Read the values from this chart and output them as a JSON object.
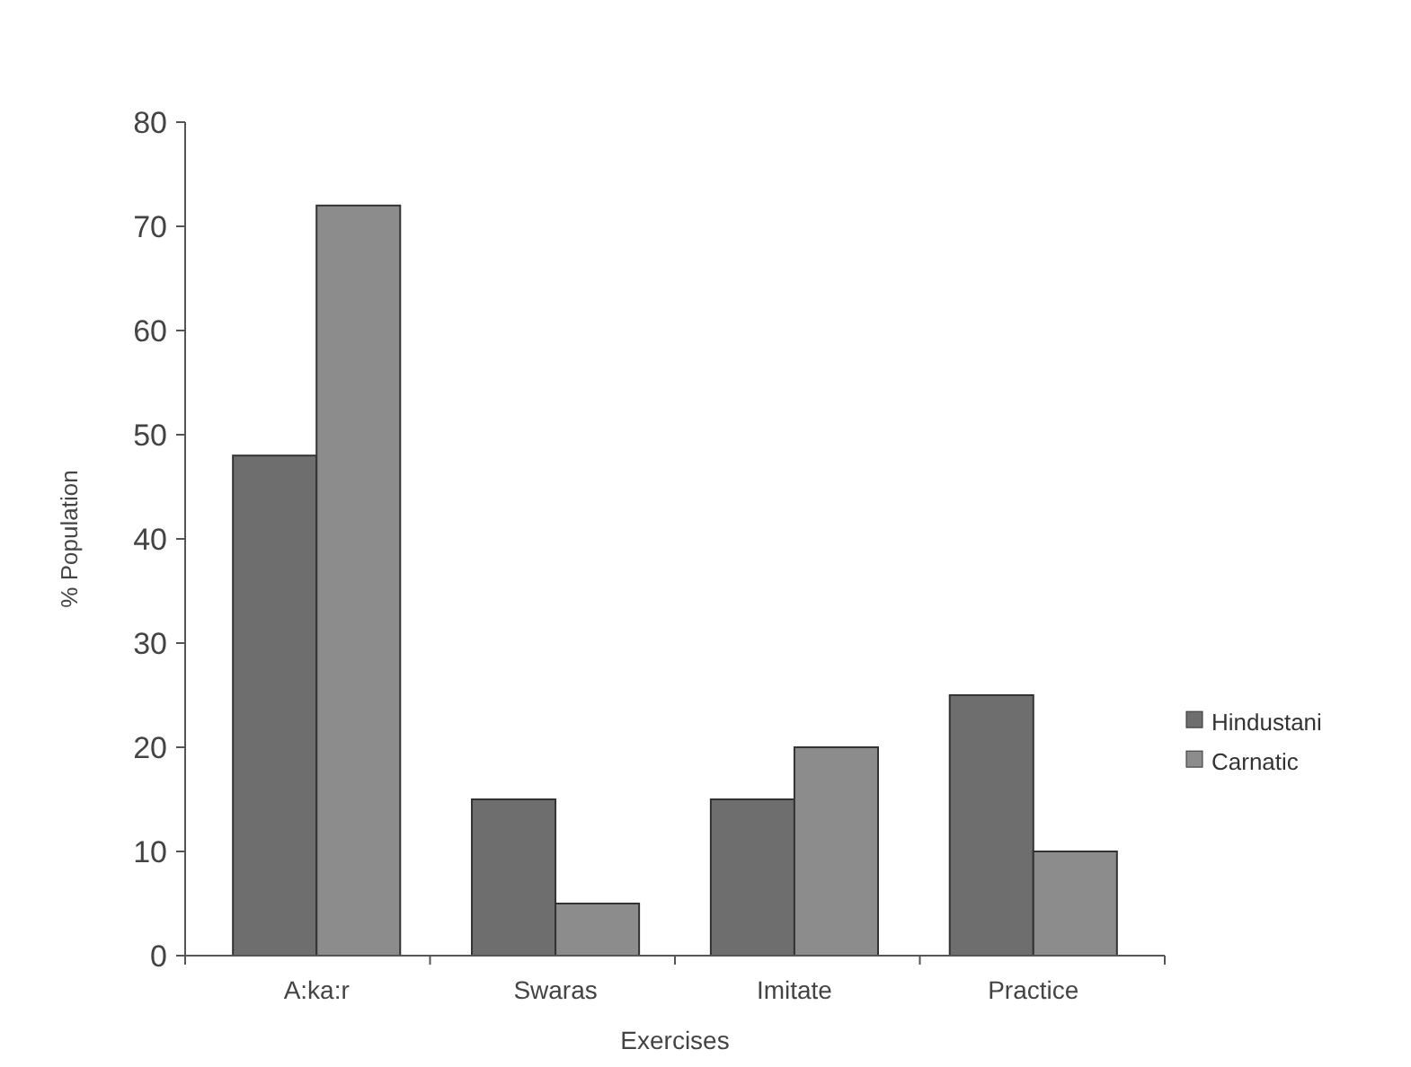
{
  "chart_data": {
    "type": "bar",
    "xlabel": "Exercises",
    "ylabel": "% Population",
    "categories": [
      "A:ka:r",
      "Swaras",
      "Imitate",
      "Practice"
    ],
    "series": [
      {
        "name": "Hindustani",
        "color": "#6e6e6e",
        "values": [
          48,
          15,
          15,
          25
        ]
      },
      {
        "name": "Carnatic",
        "color": "#8c8c8c",
        "values": [
          72,
          5,
          20,
          10
        ]
      }
    ],
    "ylim": [
      0,
      80
    ],
    "yticks": [
      0,
      10,
      20,
      30,
      40,
      50,
      60,
      70,
      80
    ],
    "legend": "right"
  }
}
